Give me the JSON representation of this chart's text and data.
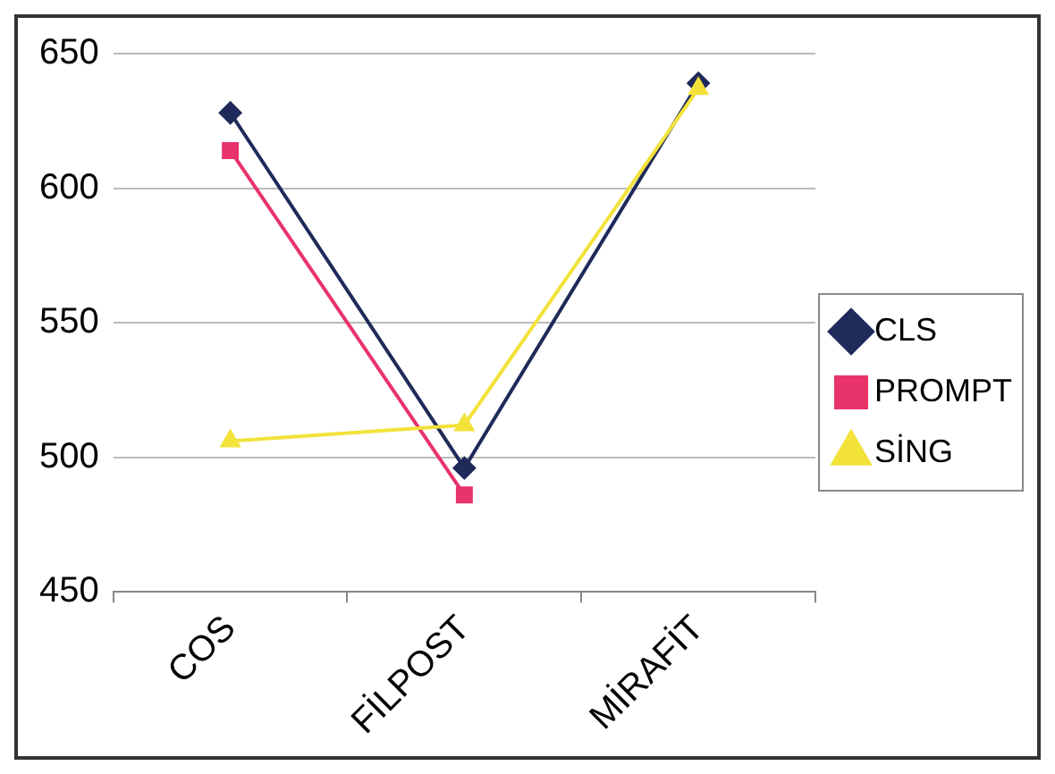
{
  "chart_data": {
    "type": "line",
    "categories": [
      "COS",
      "FİLPOST",
      "MİRAFİT"
    ],
    "series": [
      {
        "name": "CLS",
        "color": "#1f2a5a",
        "marker": "diamond",
        "values": [
          628,
          496,
          639
        ]
      },
      {
        "name": "PROMPT",
        "color": "#e8336b",
        "marker": "square",
        "values": [
          614,
          486,
          null
        ]
      },
      {
        "name": "SİNG",
        "color": "#f2e23a",
        "marker": "triangle",
        "values": [
          506,
          512,
          637
        ]
      }
    ],
    "ylim": [
      450,
      650
    ],
    "yticks": [
      450,
      500,
      550,
      600,
      650
    ],
    "grid": "y",
    "legend": "right"
  }
}
